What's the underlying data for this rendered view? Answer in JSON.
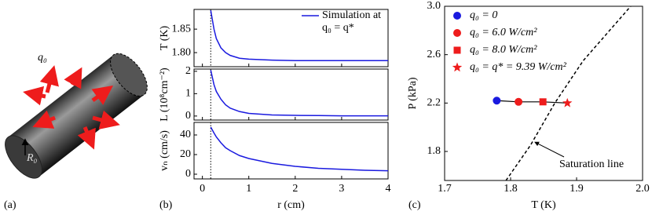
{
  "illustration": {
    "panel_label": "(a)",
    "heat_flux_label": "q₀",
    "radius_label": "R₀"
  },
  "chart_data": [
    {
      "type": "line",
      "panel_label": "(b)",
      "xlabel": "r (cm)",
      "xlim": [
        -0.18,
        4
      ],
      "xticks": [
        0,
        1,
        2,
        3,
        4
      ],
      "x": [
        0.18,
        0.25,
        0.3,
        0.4,
        0.5,
        0.6,
        0.8,
        1.0,
        1.5,
        2,
        2.5,
        3,
        3.5,
        4
      ],
      "vline_x": 0.18,
      "subplots": [
        {
          "ylabel": "T (K)",
          "ylim": [
            1.77,
            1.892
          ],
          "yticks": [
            {
              "value": 1.8,
              "label": "1.80"
            },
            1.85
          ],
          "series": [
            {
              "name": "Simulation at q₀ = q*",
              "color": "#1a1adf",
              "values": [
                1.89,
                1.85,
                1.83,
                1.81,
                1.8,
                1.794,
                1.788,
                1.786,
                1.784,
                1.783,
                1.783,
                1.783,
                1.783,
                1.783
              ]
            }
          ]
        },
        {
          "ylabel": "L (10⁸cm⁻²)",
          "ylim": [
            -0.18,
            2.1
          ],
          "yticks": [
            0,
            1,
            2
          ],
          "series": [
            {
              "color": "#1a1adf",
              "values": [
                2.05,
                1.4,
                1.1,
                0.75,
                0.5,
                0.35,
                0.2,
                0.12,
                0.05,
                0.03,
                0.02,
                0.01,
                0.01,
                0.01
              ]
            }
          ]
        },
        {
          "ylabel": "vₙ (cm/s)",
          "ylim": [
            -4.8,
            52.8
          ],
          "yticks": [
            0,
            20,
            40
          ],
          "series": [
            {
              "color": "#1a1adf",
              "values": [
                48,
                42,
                38,
                32,
                27,
                24,
                19,
                16,
                11,
                8,
                6,
                5,
                4,
                3.5
              ]
            }
          ]
        }
      ]
    },
    {
      "type": "scatter",
      "panel_label": "(c)",
      "xlabel": "T (K)",
      "ylabel": "P (kPa)",
      "xlim": [
        1.7,
        2.0
      ],
      "xticks": [
        1.7,
        1.8,
        1.9,
        {
          "value": 2.0,
          "label": "2.0"
        }
      ],
      "ylim": [
        1.56,
        3.0
      ],
      "yticks": [
        1.8,
        2.2,
        2.6,
        {
          "value": 3.0,
          "label": "3.0"
        }
      ],
      "series": [
        {
          "name": "q₀ = 0",
          "color": "#1a1adf",
          "marker": "circle",
          "x": [
            1.779
          ],
          "values": [
            2.22
          ]
        },
        {
          "name": "q₀ = 6.0 W/cm²",
          "color": "#ee1c1c",
          "marker": "circle",
          "x": [
            1.812
          ],
          "values": [
            2.21
          ]
        },
        {
          "name": "q₀ = 8.0 W/cm²",
          "color": "#ee1c1c",
          "marker": "square",
          "x": [
            1.849
          ],
          "values": [
            2.21
          ]
        },
        {
          "name": "q₀ = q* = 9.39 W/cm²",
          "color": "#ee1c1c",
          "marker": "star",
          "x": [
            1.886
          ],
          "values": [
            2.2
          ]
        }
      ],
      "saturation_line": {
        "text": "Saturation line",
        "color": "#000000",
        "x": [
          1.793,
          1.83,
          1.867,
          1.91,
          1.95,
          1.982
        ],
        "values": [
          1.56,
          1.85,
          2.2,
          2.55,
          2.8,
          3.0
        ]
      }
    }
  ]
}
